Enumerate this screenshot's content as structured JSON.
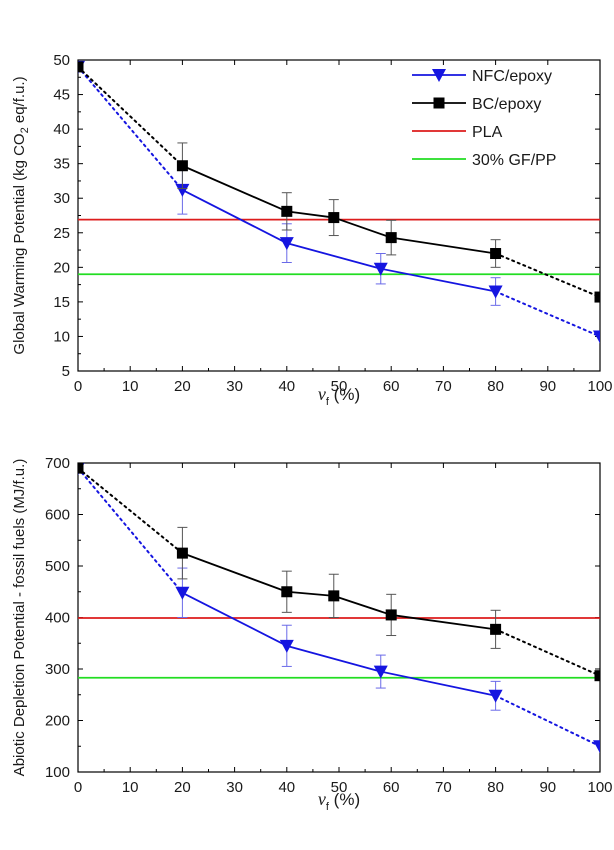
{
  "chart_data": [
    {
      "type": "line",
      "ylabel": "Global Warming Potential (kg CO",
      "ylabel_sub": "2",
      "ylabel_end": " eq/f.u.)",
      "xlabel_var": "v",
      "xlabel_sub": "f",
      "xlabel_unit": " (%)",
      "xlim": [
        0,
        100
      ],
      "ylim": [
        5,
        50
      ],
      "xticks": [
        0,
        10,
        20,
        30,
        40,
        50,
        60,
        70,
        80,
        90,
        100
      ],
      "yticks": [
        5,
        10,
        15,
        20,
        25,
        30,
        35,
        40,
        45,
        50
      ],
      "legend_position": "top-right",
      "series": [
        {
          "name": "NFC/epoxy",
          "color": "#1515e0",
          "marker": "triangle-down",
          "points": [
            [
              0,
              49
            ],
            [
              20,
              31.2
            ],
            [
              40,
              23.5
            ],
            [
              58,
              19.8
            ],
            [
              80,
              16.5
            ],
            [
              100,
              10
            ]
          ],
          "errors": [
            0,
            3.5,
            2.8,
            2.2,
            2.0,
            0
          ],
          "line_styles": [
            "dotted",
            "solid",
            "solid",
            "solid",
            "dotted"
          ]
        },
        {
          "name": "BC/epoxy",
          "color": "#000000",
          "marker": "square",
          "points": [
            [
              0,
              49
            ],
            [
              20,
              34.7
            ],
            [
              40,
              28.1
            ],
            [
              49,
              27.2
            ],
            [
              60,
              24.3
            ],
            [
              80,
              22
            ],
            [
              100,
              15.7
            ]
          ],
          "errors": [
            0,
            3.3,
            2.7,
            2.6,
            2.5,
            2.0,
            0
          ],
          "line_styles": [
            "dotted",
            "solid",
            "solid",
            "solid",
            "solid",
            "dotted"
          ]
        },
        {
          "name": "PLA",
          "color": "#dd1c1c",
          "type": "hline",
          "value": 26.9
        },
        {
          "name": "30% GF/PP",
          "color": "#22dd22",
          "type": "hline",
          "value": 19
        }
      ]
    },
    {
      "type": "line",
      "ylabel": "Abiotic Depletion Potential - fossil fuels (MJ/f.u.)",
      "xlabel_var": "v",
      "xlabel_sub": "f",
      "xlabel_unit": " (%)",
      "xlim": [
        0,
        100
      ],
      "ylim": [
        100,
        700
      ],
      "xticks": [
        0,
        10,
        20,
        30,
        40,
        50,
        60,
        70,
        80,
        90,
        100
      ],
      "yticks": [
        100,
        200,
        300,
        400,
        500,
        600,
        700
      ],
      "series": [
        {
          "name": "NFC/epoxy",
          "color": "#1515e0",
          "marker": "triangle-down",
          "points": [
            [
              0,
              690
            ],
            [
              20,
              448
            ],
            [
              40,
              345
            ],
            [
              58,
              295
            ],
            [
              80,
              248
            ],
            [
              100,
              150
            ]
          ],
          "errors": [
            0,
            48,
            40,
            32,
            28,
            0
          ],
          "line_styles": [
            "dotted",
            "solid",
            "solid",
            "solid",
            "dotted"
          ]
        },
        {
          "name": "BC/epoxy",
          "color": "#000000",
          "marker": "square",
          "points": [
            [
              0,
              690
            ],
            [
              20,
              525
            ],
            [
              40,
              450
            ],
            [
              49,
              442
            ],
            [
              60,
              405
            ],
            [
              80,
              377
            ],
            [
              100,
              287
            ]
          ],
          "errors": [
            0,
            50,
            40,
            42,
            40,
            37,
            0
          ],
          "line_styles": [
            "dotted",
            "solid",
            "solid",
            "solid",
            "solid",
            "dotted"
          ]
        },
        {
          "name": "PLA",
          "color": "#dd1c1c",
          "type": "hline",
          "value": 399
        },
        {
          "name": "30% GF/PP",
          "color": "#22dd22",
          "type": "hline",
          "value": 283
        }
      ]
    }
  ]
}
